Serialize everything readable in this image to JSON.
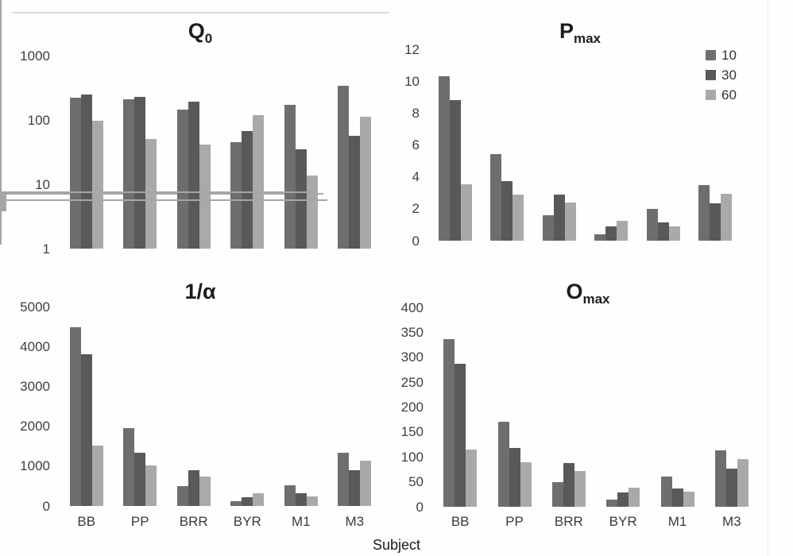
{
  "figure": {
    "xlabel": "Subject"
  },
  "colors": {
    "series": [
      "#6e6e6e",
      "#595959",
      "#a9a9a9"
    ],
    "axis": "#a6a6a6",
    "tick_text": "#3f3f3f",
    "title_text": "#1c1c1c"
  },
  "legend": {
    "entries": [
      "10",
      "30",
      "60"
    ],
    "position": "top-right"
  },
  "chart_data": [
    {
      "type": "bar",
      "title": {
        "main": "Q",
        "sub": "0"
      },
      "scale": "log",
      "categories": [
        "BB",
        "PP",
        "BRR",
        "BYR",
        "M1",
        "M3"
      ],
      "series": [
        {
          "name": "10",
          "values": [
            220,
            210,
            145,
            45,
            172,
            335
          ]
        },
        {
          "name": "30",
          "values": [
            250,
            225,
            190,
            67,
            35,
            56
          ]
        },
        {
          "name": "60",
          "values": [
            97,
            50,
            41,
            120,
            13.5,
            112
          ]
        }
      ],
      "ylim": [
        1,
        1000
      ],
      "yticks": [
        1000,
        100,
        10,
        1
      ],
      "show_x_labels": false,
      "show_legend": false
    },
    {
      "type": "bar",
      "title": {
        "main": "P",
        "sub": "max"
      },
      "scale": "linear",
      "categories": [
        "BB",
        "PP",
        "BRR",
        "BYR",
        "M1",
        "M3"
      ],
      "series": [
        {
          "name": "10",
          "values": [
            10.3,
            5.45,
            1.6,
            0.4,
            2.0,
            3.5
          ]
        },
        {
          "name": "30",
          "values": [
            8.8,
            3.75,
            2.9,
            0.9,
            1.15,
            2.35
          ]
        },
        {
          "name": "60",
          "values": [
            3.55,
            2.9,
            2.4,
            1.25,
            0.9,
            2.95
          ]
        }
      ],
      "ylim": [
        0,
        12
      ],
      "yticks": [
        12,
        10,
        8,
        6,
        4,
        2,
        0
      ],
      "show_x_labels": false,
      "show_legend": true
    },
    {
      "type": "bar",
      "title": {
        "main": "1/α",
        "sub": ""
      },
      "scale": "linear",
      "categories": [
        "BB",
        "PP",
        "BRR",
        "BYR",
        "M1",
        "M3"
      ],
      "series": [
        {
          "name": "10",
          "values": [
            4480,
            1950,
            500,
            120,
            520,
            1330
          ]
        },
        {
          "name": "30",
          "values": [
            3800,
            1330,
            900,
            225,
            315,
            900
          ]
        },
        {
          "name": "60",
          "values": [
            1520,
            1020,
            730,
            310,
            245,
            1130
          ]
        }
      ],
      "ylim": [
        0,
        5000
      ],
      "yticks": [
        5000,
        4000,
        3000,
        2000,
        1000,
        0
      ],
      "show_x_labels": true,
      "show_legend": false
    },
    {
      "type": "bar",
      "title": {
        "main": "O",
        "sub": "max"
      },
      "scale": "linear",
      "categories": [
        "BB",
        "PP",
        "BRR",
        "BYR",
        "M1",
        "M3"
      ],
      "series": [
        {
          "name": "10",
          "values": [
            337,
            171,
            50,
            14,
            60,
            113
          ]
        },
        {
          "name": "30",
          "values": [
            287,
            118,
            88,
            28,
            36,
            77
          ]
        },
        {
          "name": "60",
          "values": [
            115,
            90,
            72,
            38,
            30,
            96
          ]
        }
      ],
      "ylim": [
        0,
        400
      ],
      "yticks": [
        400,
        350,
        300,
        250,
        200,
        150,
        100,
        50,
        0
      ],
      "show_x_labels": true,
      "show_legend": false
    }
  ]
}
